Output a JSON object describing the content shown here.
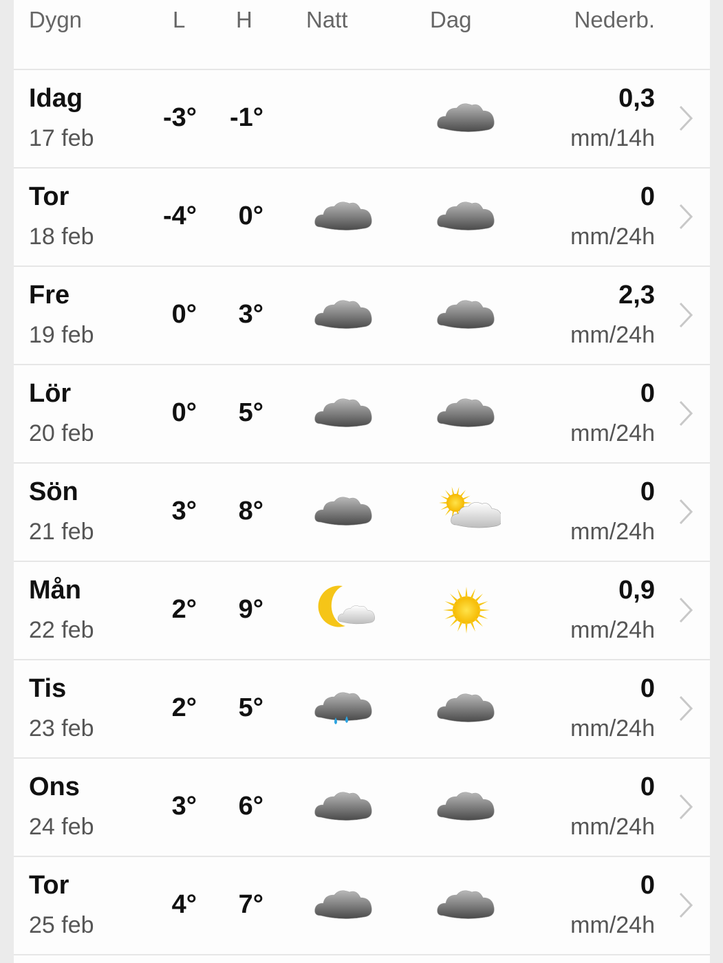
{
  "header": {
    "day": "Dygn",
    "low": "L",
    "high": "H",
    "night": "Natt",
    "day_col": "Dag",
    "precip": "Nederb."
  },
  "rows": [
    {
      "day": "Idag",
      "date": "17 feb",
      "low": "-3°",
      "high": "-1°",
      "night_icon": "",
      "day_icon": "cloud",
      "precip": "0,3",
      "unit": "mm/14h"
    },
    {
      "day": "Tor",
      "date": "18 feb",
      "low": "-4°",
      "high": "0°",
      "night_icon": "cloud",
      "day_icon": "cloud",
      "precip": "0",
      "unit": "mm/24h"
    },
    {
      "day": "Fre",
      "date": "19 feb",
      "low": "0°",
      "high": "3°",
      "night_icon": "cloud",
      "day_icon": "cloud",
      "precip": "2,3",
      "unit": "mm/24h"
    },
    {
      "day": "Lör",
      "date": "20 feb",
      "low": "0°",
      "high": "5°",
      "night_icon": "cloud",
      "day_icon": "cloud",
      "precip": "0",
      "unit": "mm/24h"
    },
    {
      "day": "Sön",
      "date": "21 feb",
      "low": "3°",
      "high": "8°",
      "night_icon": "cloud",
      "day_icon": "partly-sunny",
      "precip": "0",
      "unit": "mm/24h"
    },
    {
      "day": "Mån",
      "date": "22 feb",
      "low": "2°",
      "high": "9°",
      "night_icon": "moon-cloud",
      "day_icon": "sun",
      "precip": "0,9",
      "unit": "mm/24h"
    },
    {
      "day": "Tis",
      "date": "23 feb",
      "low": "2°",
      "high": "5°",
      "night_icon": "rain",
      "day_icon": "cloud",
      "precip": "0",
      "unit": "mm/24h"
    },
    {
      "day": "Ons",
      "date": "24 feb",
      "low": "3°",
      "high": "6°",
      "night_icon": "cloud",
      "day_icon": "cloud",
      "precip": "0",
      "unit": "mm/24h"
    },
    {
      "day": "Tor",
      "date": "25 feb",
      "low": "4°",
      "high": "7°",
      "night_icon": "cloud",
      "day_icon": "cloud",
      "precip": "0",
      "unit": "mm/24h"
    }
  ],
  "colors": {
    "cloud": "#8a8a8a",
    "sun": "#f7c615",
    "rain": "#2ba3e0",
    "chevron": "#c8c8c8"
  }
}
